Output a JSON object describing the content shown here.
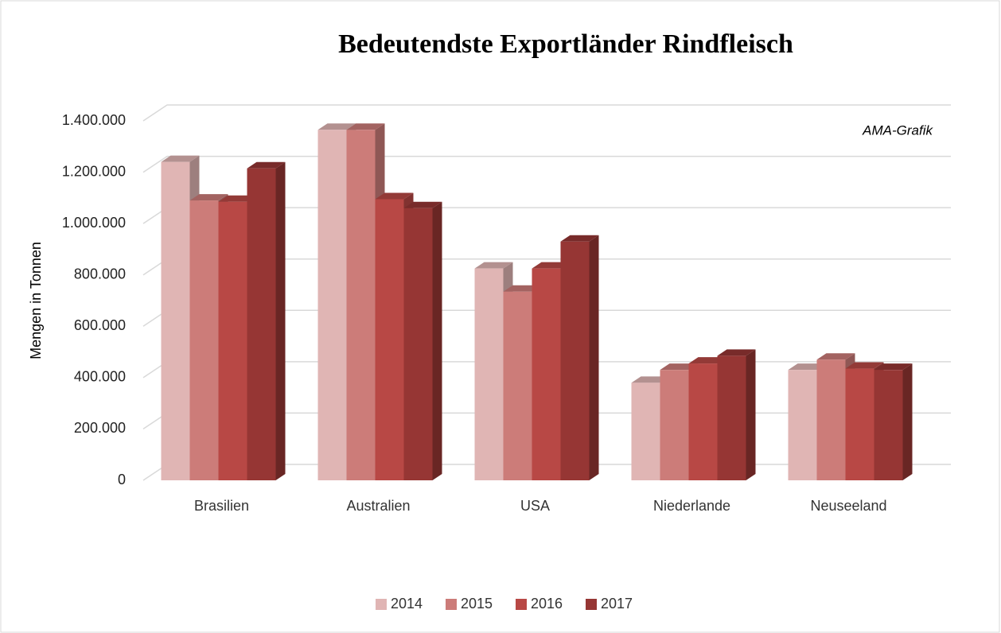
{
  "chart_data": {
    "type": "bar3d",
    "title": "Bedeutendste Exportländer Rindfleisch",
    "annotation": "AMA-Grafik",
    "y_label": "Mengen in Tonnen",
    "categories": [
      "Brasilien",
      "Australien",
      "USA",
      "Niederlande",
      "Neuseeland"
    ],
    "series": [
      {
        "name": "2014",
        "color": "#e0b5b4",
        "values": [
          1240000,
          1365000,
          825000,
          380000,
          430000
        ]
      },
      {
        "name": "2015",
        "color": "#cc7c79",
        "values": [
          1090000,
          1365000,
          735000,
          430000,
          470000
        ]
      },
      {
        "name": "2016",
        "color": "#b84845",
        "values": [
          1085000,
          1095000,
          825000,
          455000,
          435000
        ]
      },
      {
        "name": "2017",
        "color": "#963634",
        "values": [
          1215000,
          1060000,
          930000,
          485000,
          430000
        ]
      }
    ],
    "ylim": [
      0,
      1400000
    ],
    "yticks": [
      0,
      {
        "value": 200000,
        "label": "200.000"
      },
      {
        "value": 400000,
        "label": "400.000"
      },
      {
        "value": 600000,
        "label": "600.000"
      },
      {
        "value": 800000,
        "label": "800.000"
      },
      {
        "value": 1000000,
        "label": "1.000.000"
      },
      {
        "value": 1200000,
        "label": "1.200.000"
      },
      {
        "value": 1400000,
        "label": "1.400.000"
      }
    ],
    "grid": true,
    "legend": "bottom"
  }
}
